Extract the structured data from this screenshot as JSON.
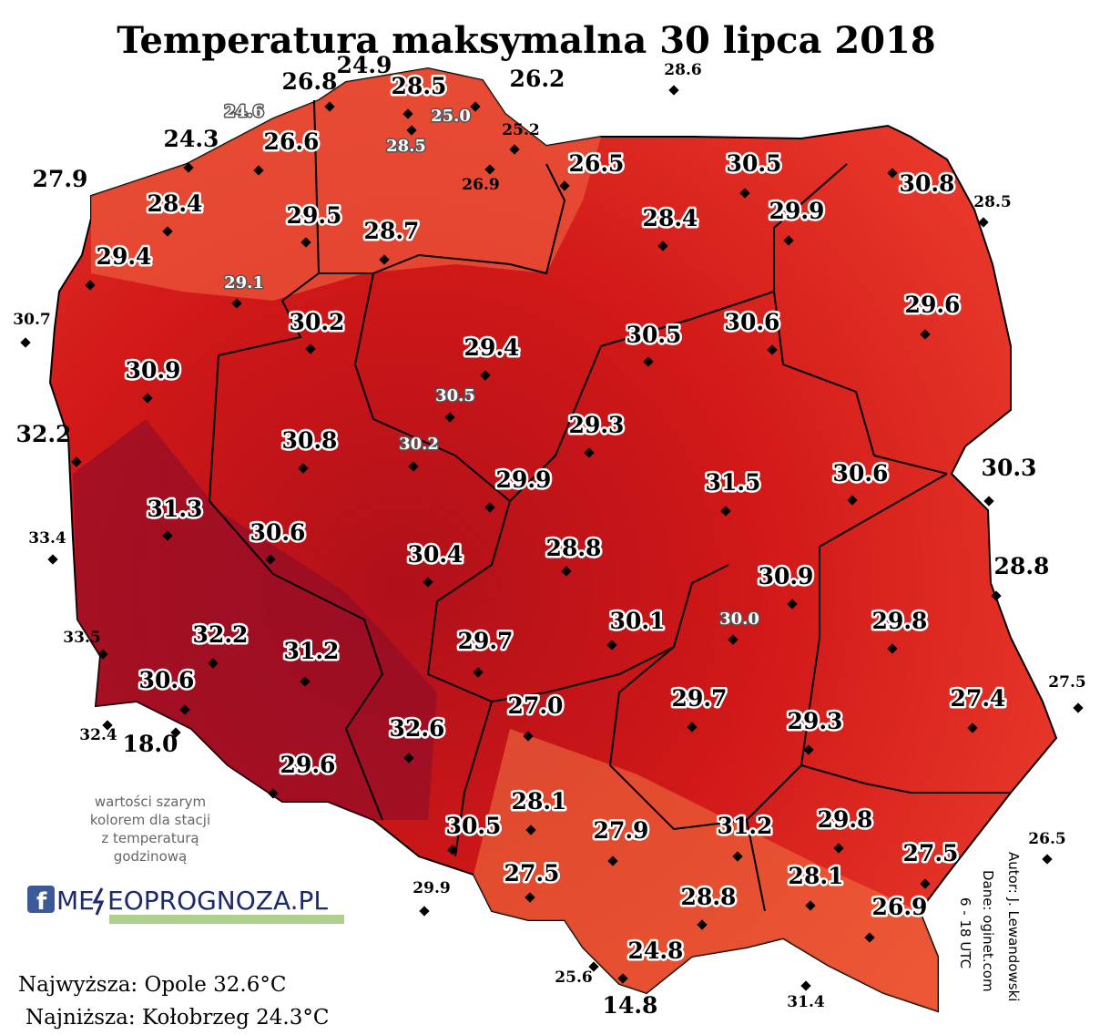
{
  "title": "Temperatura maksymalna 30 lipca 2018",
  "stations": [
    "26.8",
    "24.9",
    "28.5",
    "26.2",
    "28.6",
    "24.6",
    "25.0",
    "25.2",
    "28.5",
    "24.3",
    "26.6",
    "26.9",
    "26.5",
    "30.5",
    "30.8",
    "28.5",
    "27.9",
    "28.4",
    "29.5",
    "28.7",
    "28.4",
    "29.9",
    "29.4",
    "29.1",
    "30.7",
    "30.2",
    "29.6",
    "30.5",
    "30.6",
    "29.4",
    "30.9",
    "30.5",
    "29.3",
    "32.2",
    "30.8",
    "30.2",
    "29.9",
    "31.5",
    "30.6",
    "30.3",
    "31.3",
    "33.4",
    "30.6",
    "30.4",
    "28.8",
    "28.8",
    "30.9",
    "30.0",
    "30.1",
    "29.8",
    "29.7",
    "32.2",
    "31.2",
    "33.5",
    "30.6",
    "27.5",
    "27.4",
    "29.7",
    "27.0",
    "29.3",
    "32.6",
    "32.4",
    "18.0",
    "29.6",
    "28.1",
    "30.5",
    "27.9",
    "31.2",
    "29.8",
    "26.5",
    "27.5",
    "27.5",
    "28.1",
    "29.9",
    "28.8",
    "26.9",
    "24.8",
    "25.6",
    "31.4",
    "14.8"
  ],
  "note": [
    "wartości szarym",
    "kolorem dla stacji",
    "z temperaturą",
    "godzinową"
  ],
  "logo": {
    "left": "ME",
    "right": "EOPROGNOZA.PL"
  },
  "credits": [
    "Autor: J. Lewandowski",
    "Dane: oginet.com",
    "6 - 18 UTC"
  ],
  "summary": {
    "highest": "Najwyższa: Opole 32.6°C",
    "lowest": "Najniższa: Kołobrzeg 24.3°C"
  }
}
